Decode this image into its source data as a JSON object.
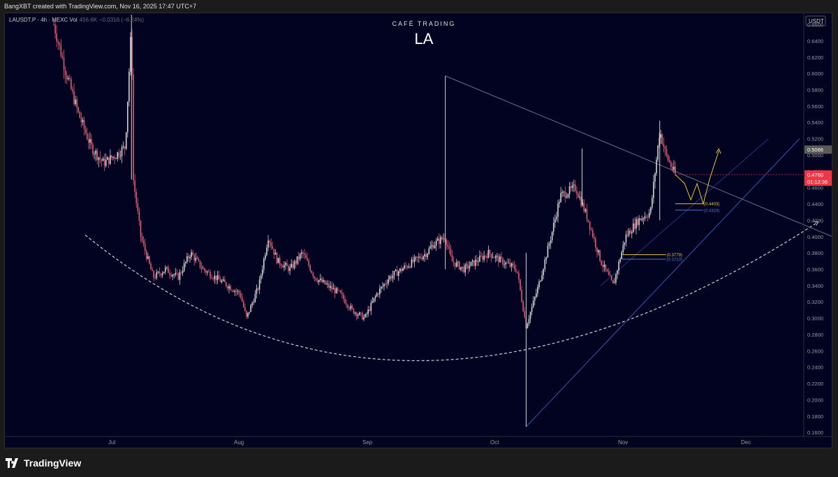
{
  "header": {
    "attribution": "BangXBT created with TradingView.com, Nov 16, 2025 17:47 UTC+7"
  },
  "footer": {
    "brand": "TradingView"
  },
  "symbol_bar": {
    "text": "LAUSDT.P · 4h · MEXC  Vol",
    "vol_value": "456.6K",
    "change": "−0.0316 (−6.24%)"
  },
  "watermark": {
    "caption": "CAFÉ TRADING",
    "ticker": "LA"
  },
  "price_scale": {
    "currency": "USDT",
    "last_price": "0.4760",
    "countdown": "01:12:36",
    "marker_price": "0.5066"
  },
  "annotations": [
    {
      "text": "(0.4403)",
      "price": 0.4403,
      "color": "#e6c229"
    },
    {
      "text": "(0.4324)",
      "price": 0.4324,
      "color": "#4a78d6"
    },
    {
      "text": "(0.3779)",
      "price": 0.3779,
      "color": "#e6c229"
    },
    {
      "text": "(0.3723)",
      "price": 0.3723,
      "color": "#4a78d6"
    }
  ],
  "colors": {
    "background": "#010321",
    "candle_up": "#d5d5d5",
    "candle_down": "#e05a70",
    "trendline": "#6d6f8a",
    "channel": "#3a55b8",
    "dashed_curve": "#d0d0d0",
    "projection": "#e6c229",
    "last_price_bg": "#f23645"
  },
  "chart_data": {
    "type": "candlestick",
    "symbol": "LAUSDT.P",
    "timeframe": "4h",
    "exchange": "MEXC",
    "x_axis_labels": [
      "Jul",
      "Aug",
      "Sep",
      "Oct",
      "Nov",
      "Dec"
    ],
    "y_ticks": [
      "0.6600",
      "0.6400",
      "0.6200",
      "0.6000",
      "0.5800",
      "0.5600",
      "0.5400",
      "0.5200",
      "0.5000",
      "0.4800",
      "0.4600",
      "0.4400",
      "0.4200",
      "0.4000",
      "0.3800",
      "0.3600",
      "0.3400",
      "0.3200",
      "0.3000",
      "0.2800",
      "0.2600",
      "0.2400",
      "0.2200",
      "0.2000",
      "0.1800",
      "0.1600"
    ],
    "ylim": [
      0.155,
      0.672
    ],
    "last_price": 0.476,
    "price_path": [
      [
        0.0,
        0.66
      ],
      [
        0.02,
        0.6
      ],
      [
        0.04,
        0.55
      ],
      [
        0.06,
        0.51
      ],
      [
        0.08,
        0.49
      ],
      [
        0.1,
        0.5
      ],
      [
        0.115,
        0.51
      ],
      [
        0.125,
        0.66
      ],
      [
        0.128,
        0.47
      ],
      [
        0.14,
        0.4
      ],
      [
        0.16,
        0.35
      ],
      [
        0.18,
        0.36
      ],
      [
        0.2,
        0.35
      ],
      [
        0.22,
        0.38
      ],
      [
        0.24,
        0.36
      ],
      [
        0.26,
        0.35
      ],
      [
        0.28,
        0.34
      ],
      [
        0.3,
        0.33
      ],
      [
        0.31,
        0.3
      ],
      [
        0.33,
        0.34
      ],
      [
        0.345,
        0.4
      ],
      [
        0.36,
        0.37
      ],
      [
        0.38,
        0.36
      ],
      [
        0.4,
        0.38
      ],
      [
        0.42,
        0.35
      ],
      [
        0.44,
        0.34
      ],
      [
        0.46,
        0.33
      ],
      [
        0.48,
        0.31
      ],
      [
        0.5,
        0.3
      ],
      [
        0.52,
        0.33
      ],
      [
        0.54,
        0.35
      ],
      [
        0.56,
        0.36
      ],
      [
        0.58,
        0.37
      ],
      [
        0.6,
        0.38
      ],
      [
        0.61,
        0.39
      ],
      [
        0.63,
        0.4
      ],
      [
        0.64,
        0.37
      ],
      [
        0.66,
        0.36
      ],
      [
        0.68,
        0.37
      ],
      [
        0.7,
        0.38
      ],
      [
        0.72,
        0.37
      ],
      [
        0.745,
        0.36
      ],
      [
        0.76,
        0.29
      ],
      [
        0.78,
        0.34
      ],
      [
        0.8,
        0.4
      ],
      [
        0.815,
        0.45
      ],
      [
        0.84,
        0.46
      ],
      [
        0.86,
        0.42
      ],
      [
        0.88,
        0.37
      ],
      [
        0.9,
        0.34
      ],
      [
        0.92,
        0.4
      ],
      [
        0.94,
        0.42
      ],
      [
        0.96,
        0.43
      ],
      [
        0.975,
        0.53
      ],
      [
        0.985,
        0.5
      ],
      [
        1.0,
        0.476
      ]
    ],
    "spikes": [
      {
        "x": 0.125,
        "high": 0.672,
        "low": 0.47
      },
      {
        "x": 0.63,
        "high": 0.597,
        "low": 0.36
      },
      {
        "x": 0.76,
        "high": 0.38,
        "low": 0.167
      },
      {
        "x": 0.85,
        "high": 0.508,
        "low": 0.44
      },
      {
        "x": 0.975,
        "high": 0.542,
        "low": 0.42
      }
    ],
    "trendlines": [
      {
        "name": "descending-resistance",
        "from": [
          0.63,
          0.597
        ],
        "to": [
          1.3,
          0.385
        ]
      },
      {
        "name": "ascending-support",
        "from": [
          0.76,
          0.167
        ],
        "to": [
          1.2,
          0.52
        ]
      }
    ],
    "projection": [
      [
        1.0,
        0.476
      ],
      [
        1.015,
        0.465
      ],
      [
        1.025,
        0.445
      ],
      [
        1.035,
        0.465
      ],
      [
        1.045,
        0.44
      ],
      [
        1.055,
        0.47
      ],
      [
        1.07,
        0.505
      ]
    ],
    "dashed_curve": {
      "left": [
        0.0,
        0.402
      ],
      "bottom": [
        0.6,
        0.248
      ],
      "right": [
        1.23,
        0.418
      ]
    }
  }
}
